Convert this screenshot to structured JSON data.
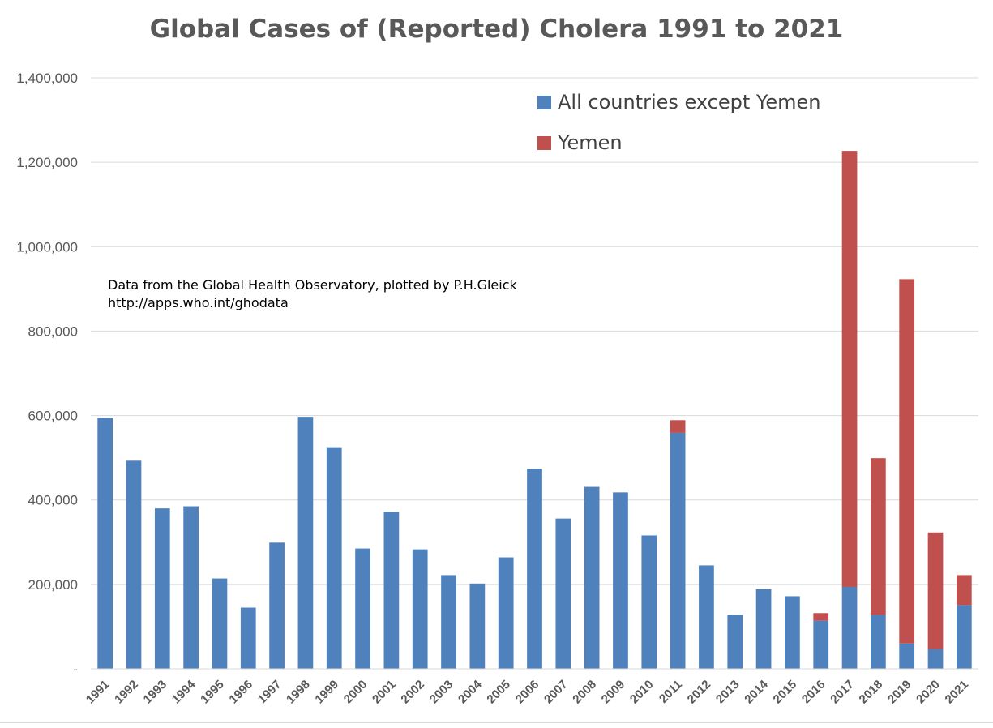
{
  "chart_data": {
    "type": "bar",
    "stacked": true,
    "title": "Global Cases of (Reported) Cholera 1991 to 2021",
    "annotation": {
      "line1": "Data from the Global Health Observatory, plotted by P.H.Gleick",
      "line2": "http://apps.who.int/ghodata"
    },
    "categories": [
      "1991",
      "1992",
      "1993",
      "1994",
      "1995",
      "1996",
      "1997",
      "1998",
      "1999",
      "2000",
      "2001",
      "2002",
      "2003",
      "2004",
      "2005",
      "2006",
      "2007",
      "2008",
      "2009",
      "2010",
      "2011",
      "2012",
      "2013",
      "2014",
      "2015",
      "2016",
      "2017",
      "2018",
      "2019",
      "2020",
      "2021"
    ],
    "series": [
      {
        "name": "All countries except Yemen",
        "color": "#4f81bd",
        "values": [
          595000,
          493000,
          380000,
          385000,
          214000,
          145000,
          299000,
          597000,
          525000,
          285000,
          372000,
          283000,
          222000,
          202000,
          264000,
          474000,
          356000,
          431000,
          418000,
          316000,
          559000,
          245000,
          128000,
          189000,
          172000,
          114000,
          194000,
          128000,
          60000,
          47000,
          151000
        ]
      },
      {
        "name": "Yemen",
        "color": "#c0504d",
        "values": [
          0,
          0,
          0,
          0,
          0,
          0,
          0,
          0,
          0,
          0,
          0,
          0,
          0,
          0,
          0,
          0,
          0,
          0,
          0,
          0,
          30000,
          0,
          0,
          0,
          0,
          18000,
          1033000,
          371000,
          863000,
          276000,
          71000
        ]
      }
    ],
    "ylim": [
      0,
      1400000
    ],
    "yticks": [
      0,
      200000,
      400000,
      600000,
      800000,
      1000000,
      1200000,
      1400000
    ],
    "ytick_labels": [
      "-",
      "200,000",
      "400,000",
      "600,000",
      "800,000",
      "1,000,000",
      "1,200,000",
      "1,400,000"
    ],
    "grid": true,
    "legend_position": "top-right"
  }
}
